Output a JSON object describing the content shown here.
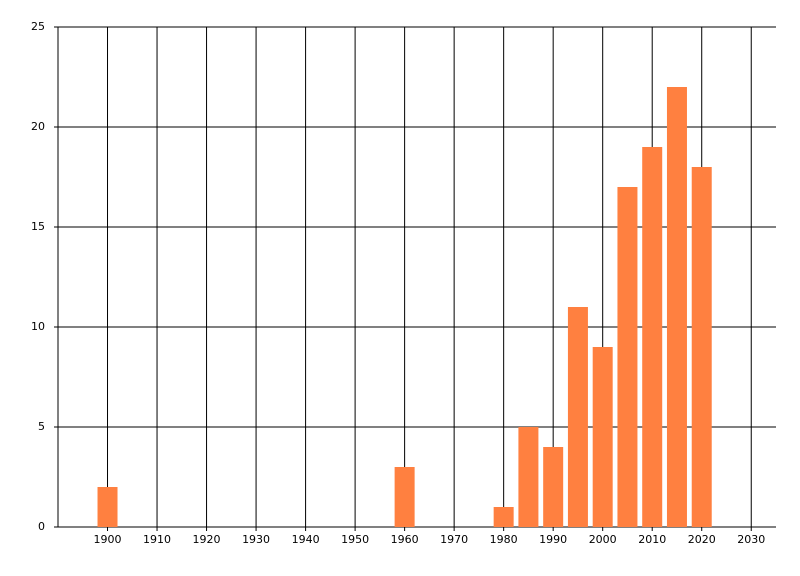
{
  "chart_data": {
    "type": "bar",
    "x": [
      1900,
      1960,
      1980,
      1985,
      1990,
      1995,
      2000,
      2005,
      2010,
      2015,
      2020
    ],
    "values": [
      2,
      3,
      1,
      5,
      4,
      11,
      9,
      17,
      19,
      22,
      18
    ],
    "color": "#ff8040",
    "xlim": [
      1890,
      2035
    ],
    "xticks": [
      1900,
      1910,
      1920,
      1930,
      1940,
      1950,
      1960,
      1970,
      1980,
      1990,
      2000,
      2010,
      2020,
      2030
    ],
    "ylim": [
      0,
      25
    ],
    "yticks": [
      0,
      5,
      10,
      15,
      20,
      25
    ],
    "grid": true
  }
}
